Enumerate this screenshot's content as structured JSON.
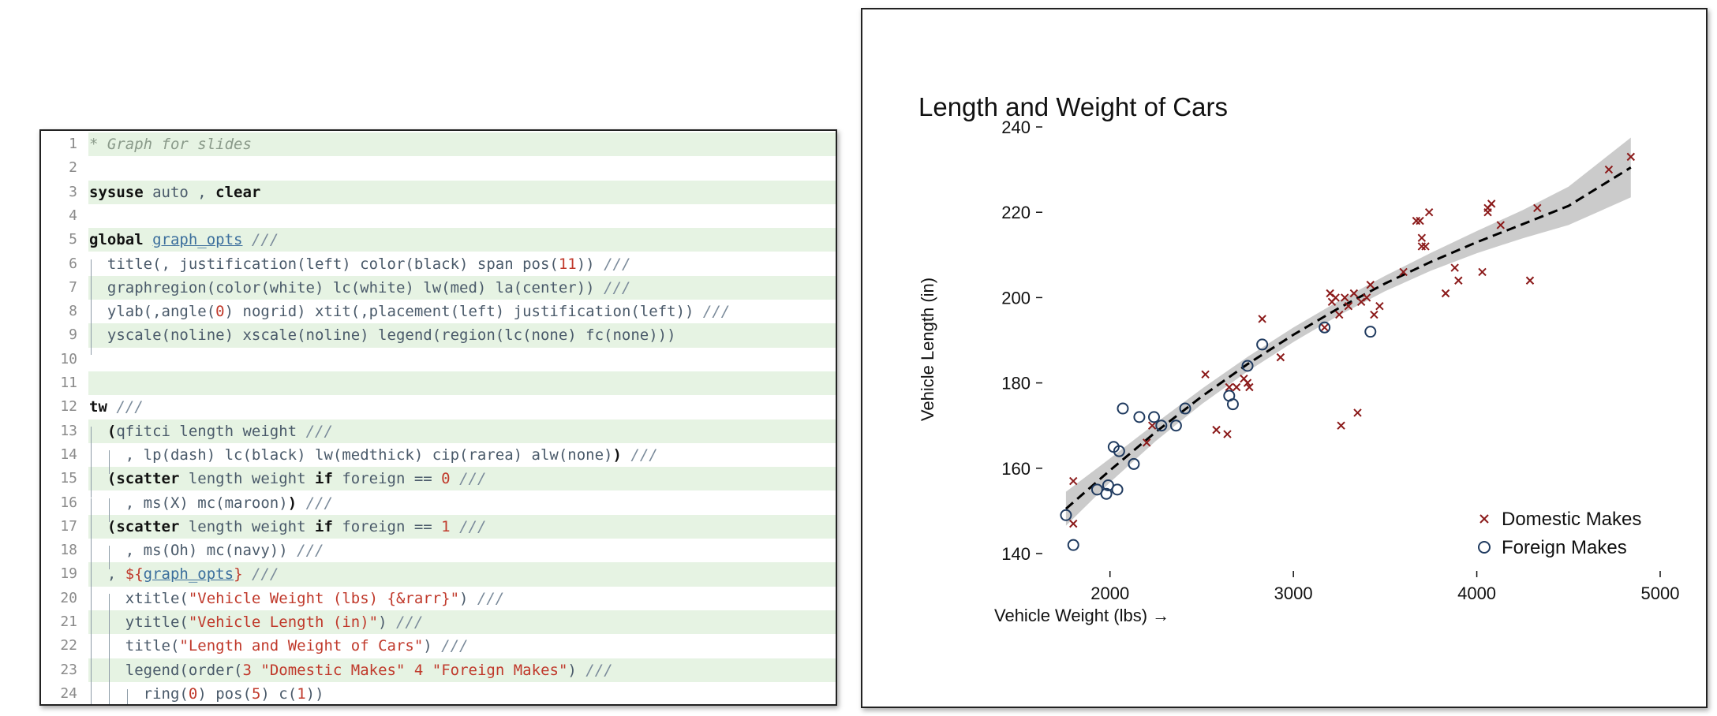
{
  "code_editor": {
    "lines": [
      {
        "num": "1",
        "shaded": true,
        "indent": 0,
        "tokens": [
          {
            "t": "* Graph for slides",
            "c": "cm"
          }
        ]
      },
      {
        "num": "2",
        "shaded": false,
        "indent": 0,
        "tokens": []
      },
      {
        "num": "3",
        "shaded": true,
        "indent": 0,
        "tokens": [
          {
            "t": "sysuse",
            "c": "kw"
          },
          {
            "t": " auto , ",
            "c": "op"
          },
          {
            "t": "clear",
            "c": "kw"
          }
        ]
      },
      {
        "num": "4",
        "shaded": false,
        "indent": 0,
        "tokens": []
      },
      {
        "num": "5",
        "shaded": true,
        "indent": 0,
        "tokens": [
          {
            "t": "global",
            "c": "kw"
          },
          {
            "t": " ",
            "c": "op"
          },
          {
            "t": "graph_opts",
            "c": "mac"
          },
          {
            "t": " ///",
            "c": "cont"
          }
        ]
      },
      {
        "num": "6",
        "shaded": false,
        "indent": 1,
        "tokens": [
          {
            "t": "title(, justification(left) color(black) span pos(",
            "c": "op"
          },
          {
            "t": "11",
            "c": "num"
          },
          {
            "t": ")) ",
            "c": "op"
          },
          {
            "t": "///",
            "c": "cont"
          }
        ]
      },
      {
        "num": "7",
        "shaded": true,
        "indent": 1,
        "tokens": [
          {
            "t": "graphregion(color(white) lc(white) lw(med) la(center)) ",
            "c": "op"
          },
          {
            "t": "///",
            "c": "cont"
          }
        ]
      },
      {
        "num": "8",
        "shaded": false,
        "indent": 1,
        "tokens": [
          {
            "t": "ylab(,angle(",
            "c": "op"
          },
          {
            "t": "0",
            "c": "num"
          },
          {
            "t": ") nogrid) xtit(,placement(left) justification(left)) ",
            "c": "op"
          },
          {
            "t": "///",
            "c": "cont"
          }
        ]
      },
      {
        "num": "9",
        "shaded": true,
        "indent": 1,
        "tokens": [
          {
            "t": "yscale(noline) xscale(noline) legend(region(lc(none) fc(none)))",
            "c": "op"
          }
        ]
      },
      {
        "num": "10",
        "shaded": false,
        "indent": 0,
        "tokens": []
      },
      {
        "num": "11",
        "shaded": true,
        "indent": 0,
        "tokens": []
      },
      {
        "num": "12",
        "shaded": false,
        "indent": 0,
        "tokens": [
          {
            "t": "tw",
            "c": "kw"
          },
          {
            "t": " ///",
            "c": "cont"
          }
        ]
      },
      {
        "num": "13",
        "shaded": true,
        "indent": 1,
        "tokens": [
          {
            "t": "(",
            "c": "pn"
          },
          {
            "t": "qfitci length weight ",
            "c": "op"
          },
          {
            "t": "///",
            "c": "cont"
          }
        ]
      },
      {
        "num": "14",
        "shaded": false,
        "indent": 2,
        "tokens": [
          {
            "t": ", lp(dash) lc(black) lw(medthick) cip(rarea) alw(none)",
            "c": "op"
          },
          {
            "t": ")",
            "c": "pn"
          },
          {
            "t": " ///",
            "c": "cont"
          }
        ]
      },
      {
        "num": "15",
        "shaded": true,
        "indent": 1,
        "tokens": [
          {
            "t": "(scatter",
            "c": "pn"
          },
          {
            "t": " length weight ",
            "c": "op"
          },
          {
            "t": "if",
            "c": "kw"
          },
          {
            "t": " foreign == ",
            "c": "op"
          },
          {
            "t": "0",
            "c": "num"
          },
          {
            "t": " ///",
            "c": "cont"
          }
        ]
      },
      {
        "num": "16",
        "shaded": false,
        "indent": 2,
        "tokens": [
          {
            "t": ", ms(X) mc(maroon)",
            "c": "op"
          },
          {
            "t": ")",
            "c": "pn"
          },
          {
            "t": " ///",
            "c": "cont"
          }
        ]
      },
      {
        "num": "17",
        "shaded": true,
        "indent": 1,
        "tokens": [
          {
            "t": "(scatter",
            "c": "pn"
          },
          {
            "t": " length weight ",
            "c": "op"
          },
          {
            "t": "if",
            "c": "kw"
          },
          {
            "t": " foreign == ",
            "c": "op"
          },
          {
            "t": "1",
            "c": "num"
          },
          {
            "t": " ///",
            "c": "cont"
          }
        ]
      },
      {
        "num": "18",
        "shaded": false,
        "indent": 2,
        "tokens": [
          {
            "t": ", ms(Oh) mc(navy))",
            "c": "op"
          },
          {
            "t": " ///",
            "c": "cont"
          }
        ]
      },
      {
        "num": "19",
        "shaded": true,
        "indent": 1,
        "tokens": [
          {
            "t": ", ",
            "c": "op"
          },
          {
            "t": "${",
            "c": "str"
          },
          {
            "t": "graph_opts",
            "c": "mac"
          },
          {
            "t": "}",
            "c": "str"
          },
          {
            "t": " ///",
            "c": "cont"
          }
        ]
      },
      {
        "num": "20",
        "shaded": false,
        "indent": 2,
        "tokens": [
          {
            "t": "xtitle(",
            "c": "op"
          },
          {
            "t": "\"Vehicle Weight (lbs) {&rarr}\"",
            "c": "str"
          },
          {
            "t": ") ",
            "c": "op"
          },
          {
            "t": "///",
            "c": "cont"
          }
        ]
      },
      {
        "num": "21",
        "shaded": true,
        "indent": 2,
        "tokens": [
          {
            "t": "ytitle(",
            "c": "op"
          },
          {
            "t": "\"Vehicle Length (in)\"",
            "c": "str"
          },
          {
            "t": ") ",
            "c": "op"
          },
          {
            "t": "///",
            "c": "cont"
          }
        ]
      },
      {
        "num": "22",
        "shaded": false,
        "indent": 2,
        "tokens": [
          {
            "t": "title(",
            "c": "op"
          },
          {
            "t": "\"Length and Weight of Cars\"",
            "c": "str"
          },
          {
            "t": ") ",
            "c": "op"
          },
          {
            "t": "///",
            "c": "cont"
          }
        ]
      },
      {
        "num": "23",
        "shaded": true,
        "indent": 2,
        "tokens": [
          {
            "t": "legend(order(",
            "c": "op"
          },
          {
            "t": "3",
            "c": "num"
          },
          {
            "t": " ",
            "c": "op"
          },
          {
            "t": "\"Domestic Makes\"",
            "c": "str"
          },
          {
            "t": " ",
            "c": "op"
          },
          {
            "t": "4",
            "c": "num"
          },
          {
            "t": " ",
            "c": "op"
          },
          {
            "t": "\"Foreign Makes\"",
            "c": "str"
          },
          {
            "t": ") ",
            "c": "op"
          },
          {
            "t": "///",
            "c": "cont"
          }
        ]
      },
      {
        "num": "24",
        "shaded": false,
        "indent": 3,
        "tokens": [
          {
            "t": "ring(",
            "c": "op"
          },
          {
            "t": "0",
            "c": "num"
          },
          {
            "t": ") pos(",
            "c": "op"
          },
          {
            "t": "5",
            "c": "num"
          },
          {
            "t": ") c(",
            "c": "op"
          },
          {
            "t": "1",
            "c": "num"
          },
          {
            "t": "))",
            "c": "op"
          }
        ]
      }
    ]
  },
  "chart_data": {
    "type": "scatter",
    "title": "Length and Weight of Cars",
    "xlabel": "Vehicle Weight (lbs) →",
    "ylabel": "Vehicle Length (in)",
    "xlim": [
      1700,
      5000
    ],
    "ylim": [
      140,
      240
    ],
    "xticks": [
      2000,
      3000,
      4000,
      5000
    ],
    "yticks": [
      140,
      160,
      180,
      200,
      220,
      240
    ],
    "grid": false,
    "legend_position": "bottom-right",
    "colors": {
      "domestic": "#8b1a1a",
      "foreign": "#1f3a5f",
      "fit": "#000000",
      "ci": "#c8c8c8"
    },
    "fit_line": {
      "x": [
        1760,
        2000,
        2250,
        2500,
        2750,
        3000,
        3250,
        3500,
        3750,
        4000,
        4250,
        4500,
        4840
      ],
      "y": [
        150.5,
        159.5,
        168.5,
        176.8,
        184.4,
        191.3,
        197.6,
        203.3,
        208.4,
        213.0,
        217.2,
        221.5,
        230.5
      ],
      "ci_low": [
        146.5,
        156.7,
        166.4,
        175.0,
        182.7,
        189.6,
        195.9,
        201.5,
        206.3,
        210.4,
        213.9,
        217.0,
        223.5
      ],
      "ci_high": [
        154.5,
        162.3,
        170.6,
        178.6,
        186.1,
        193.0,
        199.3,
        205.1,
        210.5,
        215.6,
        220.5,
        226.0,
        237.5
      ]
    },
    "series": [
      {
        "name": "Domestic Makes",
        "marker": "x",
        "points": [
          [
            1800,
            157
          ],
          [
            1800,
            147
          ],
          [
            2200,
            166
          ],
          [
            2230,
            170
          ],
          [
            2520,
            182
          ],
          [
            2580,
            169
          ],
          [
            2640,
            168
          ],
          [
            2650,
            179
          ],
          [
            2690,
            179
          ],
          [
            2730,
            181
          ],
          [
            2750,
            180
          ],
          [
            2760,
            179
          ],
          [
            2830,
            195
          ],
          [
            2930,
            186
          ],
          [
            3170,
            193
          ],
          [
            3200,
            201
          ],
          [
            3210,
            199
          ],
          [
            3230,
            200
          ],
          [
            3250,
            196
          ],
          [
            3260,
            170
          ],
          [
            3280,
            200
          ],
          [
            3300,
            198
          ],
          [
            3330,
            201
          ],
          [
            3350,
            173
          ],
          [
            3370,
            199
          ],
          [
            3400,
            200
          ],
          [
            3420,
            203
          ],
          [
            3440,
            196
          ],
          [
            3470,
            198
          ],
          [
            3600,
            206
          ],
          [
            3670,
            218
          ],
          [
            3690,
            218
          ],
          [
            3700,
            212
          ],
          [
            3700,
            214
          ],
          [
            3720,
            212
          ],
          [
            3740,
            220
          ],
          [
            3830,
            201
          ],
          [
            3880,
            207
          ],
          [
            3900,
            204
          ],
          [
            4030,
            206
          ],
          [
            4060,
            220
          ],
          [
            4060,
            221
          ],
          [
            4080,
            222
          ],
          [
            4130,
            217
          ],
          [
            4290,
            204
          ],
          [
            4330,
            221
          ],
          [
            4720,
            230
          ],
          [
            4840,
            233
          ]
        ]
      },
      {
        "name": "Foreign Makes",
        "marker": "circle",
        "points": [
          [
            1760,
            149
          ],
          [
            1800,
            142
          ],
          [
            1930,
            155
          ],
          [
            1980,
            154
          ],
          [
            1990,
            156
          ],
          [
            2020,
            165
          ],
          [
            2040,
            155
          ],
          [
            2050,
            164
          ],
          [
            2070,
            174
          ],
          [
            2130,
            161
          ],
          [
            2160,
            172
          ],
          [
            2240,
            172
          ],
          [
            2280,
            170
          ],
          [
            2360,
            170
          ],
          [
            2410,
            174
          ],
          [
            2650,
            177
          ],
          [
            2670,
            175
          ],
          [
            2750,
            184
          ],
          [
            2830,
            189
          ],
          [
            3170,
            193
          ],
          [
            3420,
            192
          ]
        ]
      }
    ]
  }
}
